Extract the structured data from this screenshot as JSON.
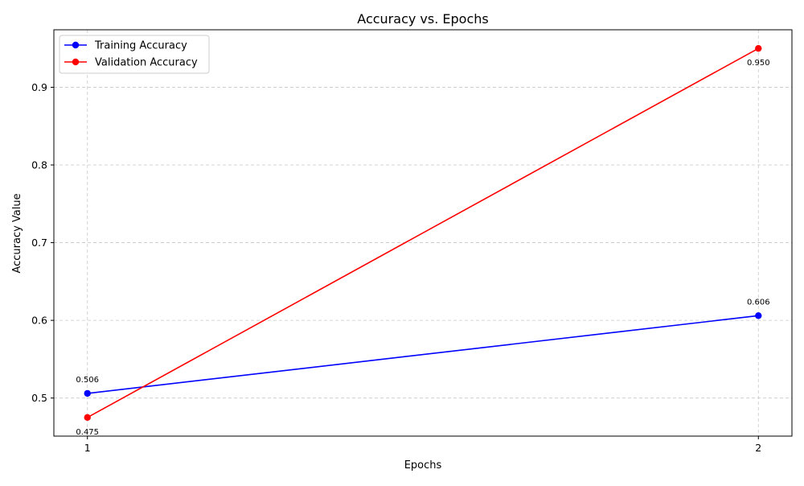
{
  "chart_data": {
    "type": "line",
    "title": "Accuracy vs. Epochs",
    "xlabel": "Epochs",
    "ylabel": "Accuracy Value",
    "x": [
      1,
      2
    ],
    "xticks": [
      "1",
      "2"
    ],
    "yticks": [
      "0.5",
      "0.6",
      "0.7",
      "0.8",
      "0.9"
    ],
    "ytick_values": [
      0.5,
      0.6,
      0.7,
      0.8,
      0.9
    ],
    "xlim": [
      0.95,
      2.05
    ],
    "ylim": [
      0.451,
      0.974
    ],
    "grid": true,
    "grid_style": "dashed",
    "legend_position": "top-left",
    "series": [
      {
        "name": "Training Accuracy",
        "color": "#0000ff",
        "values": [
          0.506,
          0.606
        ],
        "data_labels": [
          "0.506",
          "0.606"
        ],
        "label_position": "above"
      },
      {
        "name": "Validation Accuracy",
        "color": "#ff0000",
        "values": [
          0.475,
          0.95
        ],
        "data_labels": [
          "0.475",
          "0.950"
        ],
        "label_position": "below"
      }
    ]
  }
}
